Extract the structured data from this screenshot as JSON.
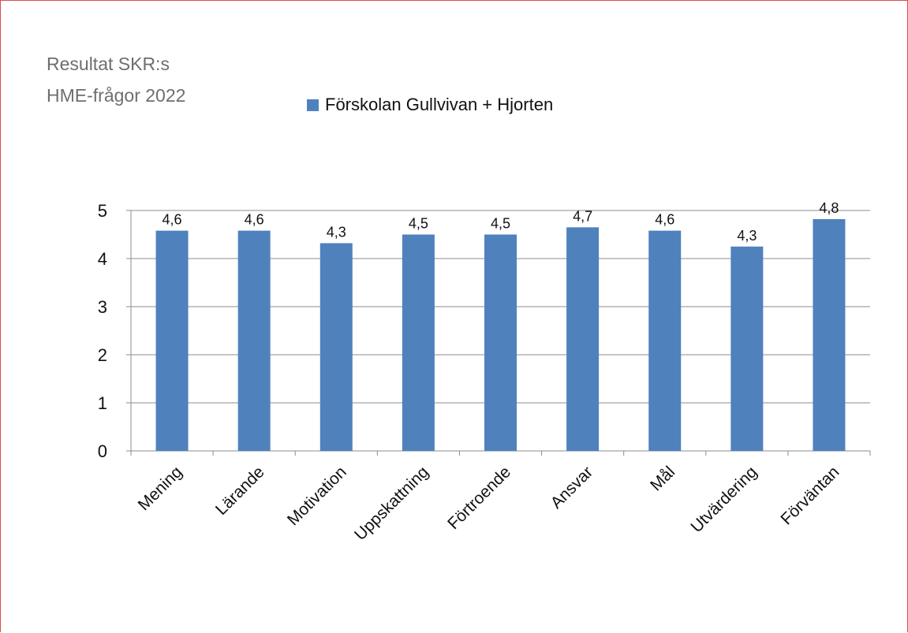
{
  "title_lines": [
    "Resultat SKR:s",
    "HME-frågor 2022"
  ],
  "chart_data": {
    "type": "bar",
    "categories": [
      "Mening",
      "Lärande",
      "Motivation",
      "Uppskattning",
      "Förtroende",
      "Ansvar",
      "Mål",
      "Utvärdering",
      "Förväntan"
    ],
    "series": [
      {
        "name": "Förskolan Gullvivan + Hjorten",
        "values": [
          4.6,
          4.6,
          4.3,
          4.5,
          4.5,
          4.7,
          4.6,
          4.3,
          4.8
        ],
        "heights": [
          4.58,
          4.58,
          4.32,
          4.5,
          4.5,
          4.65,
          4.58,
          4.25,
          4.82
        ],
        "labels": [
          "4,6",
          "4,6",
          "4,3",
          "4,5",
          "4,5",
          "4,7",
          "4,6",
          "4,3",
          "4,8"
        ],
        "color": "#4f81bd"
      }
    ],
    "yticks": [
      0,
      1,
      2,
      3,
      4,
      5
    ],
    "ylim": [
      0,
      5
    ],
    "grid": true,
    "legend_position": "top"
  }
}
